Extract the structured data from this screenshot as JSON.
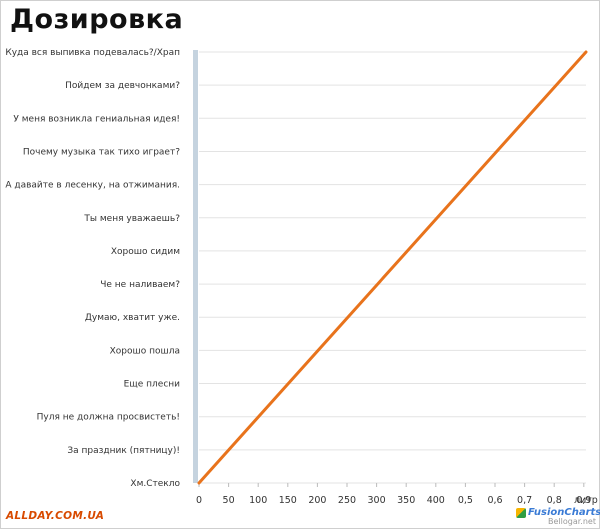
{
  "title": "Дозировка",
  "chart_data": {
    "type": "line",
    "title": "Дозировка",
    "xlabel": "литр",
    "ylabel": "",
    "x_ticks": [
      "0",
      "50",
      "100",
      "150",
      "200",
      "250",
      "300",
      "350",
      "400",
      "0,5",
      "0,6",
      "0,7",
      "0,8",
      "0,9"
    ],
    "x_unit": "литр",
    "y_categories": [
      "Хм.Стекло",
      "За праздник (пятницу)!",
      "Пуля не должна просвистеть!",
      "Еще плесни",
      "Хорошо пошла",
      "Думаю, хватит уже.",
      "Че не наливаем?",
      "Хорошо сидим",
      "Ты меня уважаешь?",
      "А давайте в лесенку, на отжимания.",
      "Почему музыка так тихо играет?",
      "У меня возникла гениальная идея!",
      "Пойдем за девчонками?",
      "Куда вся выпивка подевалась?/Храп"
    ],
    "series": [
      {
        "x": [
          0,
          1
        ],
        "y": [
          0,
          13
        ],
        "color": "#e8731c"
      }
    ],
    "grid": true
  },
  "watermarks": {
    "left": "ALLDAY.COM.UA",
    "right": "FusionCharts",
    "site": "Bellogar.net"
  },
  "colors": {
    "line": "#e8731c",
    "axis_bar": "#c5d3df",
    "grid": "#e3e3e3",
    "watermark_left": "#d84a00"
  }
}
